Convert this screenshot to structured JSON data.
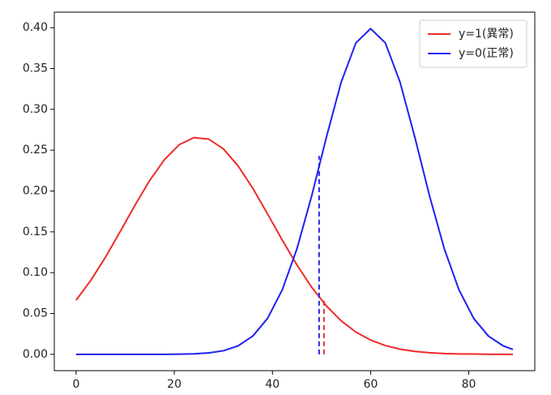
{
  "chart_data": {
    "type": "line",
    "x": [
      0,
      3,
      6,
      9,
      12,
      15,
      18,
      21,
      24,
      27,
      30,
      33,
      36,
      39,
      42,
      45,
      48,
      51,
      54,
      57,
      60,
      63,
      66,
      69,
      72,
      75,
      78,
      81,
      84,
      87,
      89
    ],
    "series": [
      {
        "name": "y=1(異常)",
        "color": "#f02a2a",
        "values": [
          0.0663,
          0.0907,
          0.1192,
          0.1506,
          0.1827,
          0.213,
          0.2385,
          0.2567,
          0.2654,
          0.2636,
          0.2516,
          0.2307,
          0.2033,
          0.172,
          0.1399,
          0.1093,
          0.0821,
          0.0592,
          0.041,
          0.0273,
          0.0175,
          0.0107,
          0.0063,
          0.0036,
          0.002,
          0.001,
          0.0005,
          0.0003,
          0.0001,
          0.0,
          0.0
        ]
      },
      {
        "name": "y=0(正常)",
        "color": "#2020f0",
        "values": [
          0.0,
          0.0,
          0.0,
          0.0,
          0.0,
          0.0,
          0.0,
          0.0002,
          0.0006,
          0.0017,
          0.0044,
          0.0104,
          0.0224,
          0.044,
          0.079,
          0.1295,
          0.1942,
          0.2661,
          0.3332,
          0.3813,
          0.3989,
          0.3813,
          0.3332,
          0.2661,
          0.1942,
          0.1295,
          0.079,
          0.044,
          0.0224,
          0.0104,
          0.006
        ]
      }
    ],
    "thresholds": [
      {
        "x": 50.5,
        "y": 0.066,
        "color": "#f02a2a"
      },
      {
        "x": 49.5,
        "y": 0.243,
        "color": "#2020f0"
      }
    ],
    "xlim": [
      -4.45,
      93.45
    ],
    "ylim": [
      -0.02,
      0.419
    ],
    "xticks": [
      0,
      20,
      40,
      60,
      80
    ],
    "yticks": [
      {
        "value": 0,
        "label": "0.00"
      },
      {
        "value": 0.05,
        "label": "0.05"
      },
      {
        "value": 0.1,
        "label": "0.10"
      },
      {
        "value": 0.15,
        "label": "0.15"
      },
      {
        "value": 0.2,
        "label": "0.20"
      },
      {
        "value": 0.25,
        "label": "0.25"
      },
      {
        "value": 0.3,
        "label": "0.30"
      },
      {
        "value": 0.35,
        "label": "0.35"
      },
      {
        "value": 0.4,
        "label": "0.40"
      }
    ],
    "legend": "upper right",
    "grid": false
  }
}
